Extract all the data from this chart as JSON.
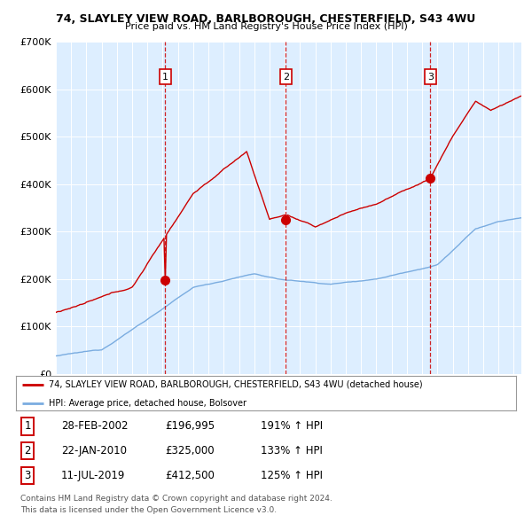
{
  "title_line1": "74, SLAYLEY VIEW ROAD, BARLBOROUGH, CHESTERFIELD, S43 4WU",
  "title_line2": "Price paid vs. HM Land Registry's House Price Index (HPI)",
  "xmin": 1995.0,
  "xmax": 2025.5,
  "ymin": 0,
  "ymax": 700000,
  "yticks": [
    0,
    100000,
    200000,
    300000,
    400000,
    500000,
    600000,
    700000
  ],
  "sale_dates": [
    2002.16,
    2010.06,
    2019.53
  ],
  "sale_prices": [
    196995,
    325000,
    412500
  ],
  "sale_labels": [
    "1",
    "2",
    "3"
  ],
  "red_color": "#cc0000",
  "blue_color": "#7aace0",
  "bg_color": "#ddeeff",
  "legend_line1": "74, SLAYLEY VIEW ROAD, BARLBOROUGH, CHESTERFIELD, S43 4WU (detached house)",
  "legend_line2": "HPI: Average price, detached house, Bolsover",
  "table_data": [
    [
      "1",
      "28-FEB-2002",
      "£196,995",
      "191% ↑ HPI"
    ],
    [
      "2",
      "22-JAN-2010",
      "£325,000",
      "133% ↑ HPI"
    ],
    [
      "3",
      "11-JUL-2019",
      "£412,500",
      "125% ↑ HPI"
    ]
  ],
  "footnote1": "Contains HM Land Registry data © Crown copyright and database right 2024.",
  "footnote2": "This data is licensed under the Open Government Licence v3.0."
}
